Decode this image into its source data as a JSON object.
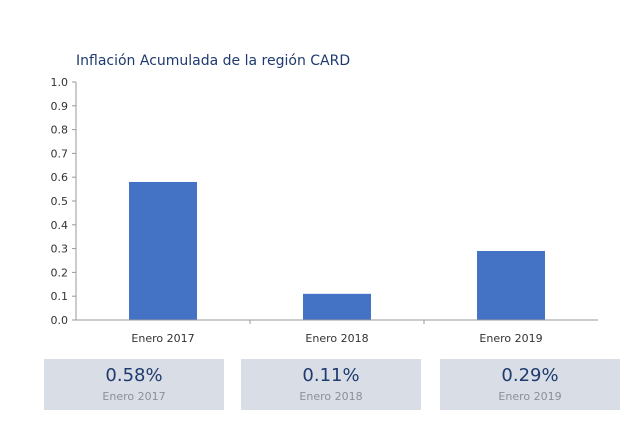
{
  "chart_data": {
    "type": "bar",
    "title": "Inflación Acumulada de la región CARD",
    "categories": [
      "Enero 2017",
      "Enero 2018",
      "Enero 2019"
    ],
    "values": [
      0.58,
      0.11,
      0.29
    ],
    "ylim": [
      0.0,
      1.0
    ],
    "yticks": [
      "0.0",
      "0.1",
      "0.2",
      "0.3",
      "0.4",
      "0.5",
      "0.6",
      "0.7",
      "0.8",
      "0.9",
      "1.0"
    ],
    "xlabel": "",
    "ylabel": "",
    "grid": false,
    "legend": "none",
    "bar_color": "#4472c4",
    "axis_color": "#999999"
  },
  "summary": [
    {
      "value": "0.58%",
      "label": "Enero 2017"
    },
    {
      "value": "0.11%",
      "label": "Enero 2018"
    },
    {
      "value": "0.29%",
      "label": "Enero 2019"
    }
  ],
  "colors": {
    "title": "#1f3a6e",
    "summary_bg": "#d9dde6",
    "summary_value": "#1f3a6e",
    "summary_label": "#8a8f99"
  }
}
